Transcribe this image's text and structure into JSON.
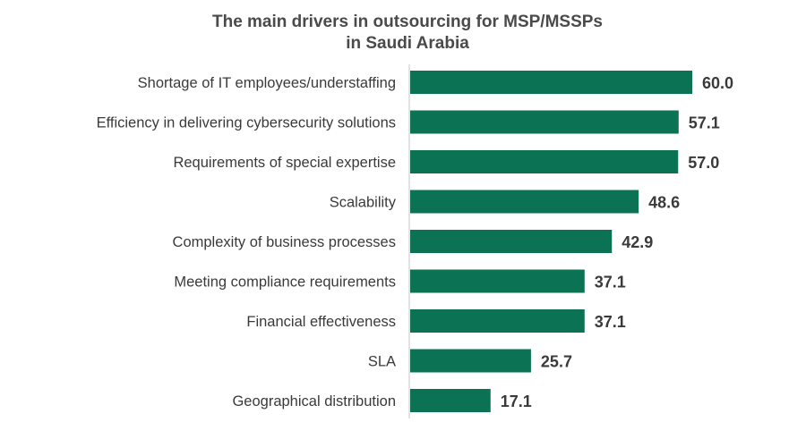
{
  "chart_data": {
    "type": "bar",
    "orientation": "horizontal",
    "title_lines": [
      "The main drivers in outsourcing for MSP/MSSPs",
      "in Saudi Arabia"
    ],
    "categories": [
      "Shortage of IT employees/understaffing",
      "Efficiency in delivering cybersecurity solutions",
      "Requirements of special expertise",
      "Scalability",
      "Complexity of business processes",
      "Meeting compliance requirements",
      "Financial effectiveness",
      "SLA",
      "Geographical distribution"
    ],
    "values": [
      60.0,
      57.1,
      57.0,
      48.6,
      42.9,
      37.1,
      37.1,
      25.7,
      17.1
    ],
    "value_labels": [
      "60.0",
      "57.1",
      "57.0",
      "48.6",
      "42.9",
      "37.1",
      "37.1",
      "25.7",
      "17.1"
    ],
    "xlim": [
      0,
      60
    ],
    "grid": false,
    "legend": "none",
    "bar_color": "#0b7353",
    "axis_color": "#d9d9d9",
    "text_color": "#3a3a3a",
    "title_color": "#4a4a4a"
  }
}
